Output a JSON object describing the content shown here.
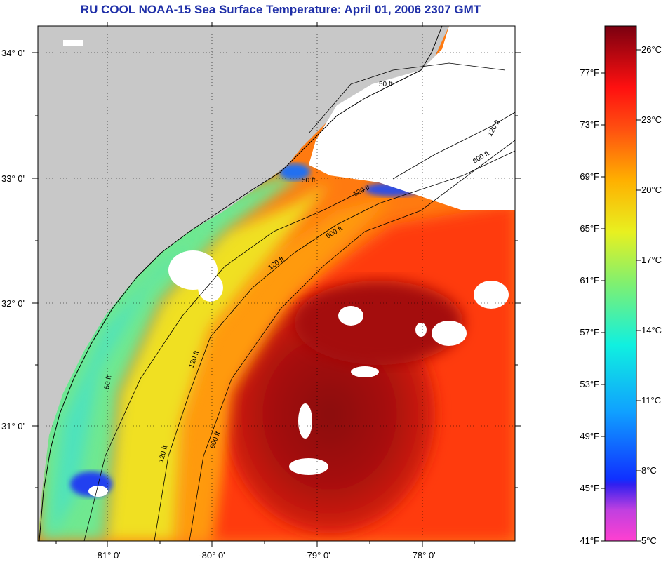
{
  "title": "RU COOL  NOAA-15  Sea Surface Temperature:  April 01, 2006 2307 GMT",
  "map": {
    "lat_labels": [
      "34° 0'",
      "33° 0'",
      "32° 0'",
      "31° 0'"
    ],
    "lon_labels": [
      "-81° 0'",
      "-80° 0'",
      "-79° 0'",
      "-78° 0'"
    ],
    "contour_labels": [
      "50 ft",
      "120 ft",
      "600 ft",
      "120 ft",
      "50 ft",
      "600 ft",
      "120 ft",
      "50 ft",
      "120 ft",
      "600 ft",
      "120 ft"
    ]
  },
  "colorbar": {
    "fahrenheit": [
      "77°F",
      "73°F",
      "69°F",
      "65°F",
      "61°F",
      "57°F",
      "53°F",
      "49°F",
      "45°F",
      "41°F"
    ],
    "celsius": [
      "26°C",
      "23°C",
      "20°C",
      "17°C",
      "14°C",
      "11°C",
      "8°C",
      "5°C"
    ]
  }
}
